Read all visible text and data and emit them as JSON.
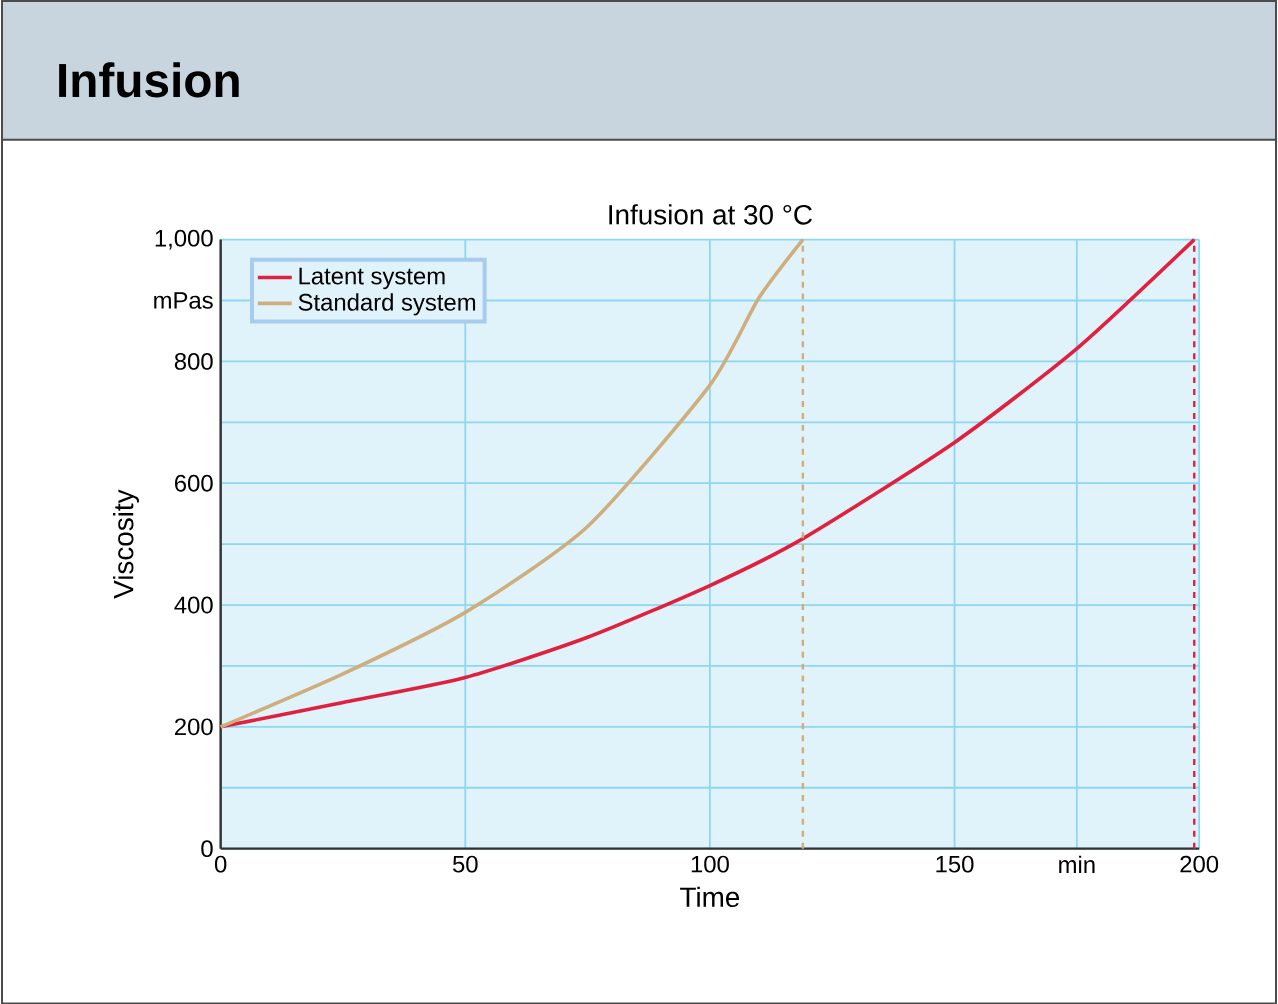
{
  "chart_data": {
    "type": "line",
    "title": "Infusion",
    "subtitle": "Infusion at 30 °C",
    "xlabel": "Time",
    "ylabel": "Viscosity",
    "xlim": [
      0,
      200
    ],
    "ylim": [
      0,
      1000
    ],
    "xticks": [
      0,
      50,
      100,
      150,
      {
        "value": 175,
        "label": "min"
      },
      200
    ],
    "yticks": [
      0,
      {
        "value": 100,
        "label": null
      },
      200,
      {
        "value": 300,
        "label": null
      },
      400,
      {
        "value": 500,
        "label": null
      },
      600,
      {
        "value": 700,
        "label": null
      },
      800,
      {
        "value": 900,
        "label": "mPas"
      },
      {
        "value": 1000,
        "label": "1,000"
      }
    ],
    "grid": true,
    "legend": "top left",
    "line_style": "solid",
    "marker": "none",
    "series": [
      {
        "name": "Latent system",
        "color": "#e0203f",
        "x": [
          0,
          25,
          50,
          75,
          100,
          119,
          150,
          175,
          199
        ],
        "values": [
          200,
          240,
          281,
          347,
          432,
          509,
          667,
          821,
          1000
        ]
      },
      {
        "name": "Standard system",
        "color": "#cfae7e",
        "x": [
          0,
          25,
          50,
          75,
          100,
          110,
          119
        ],
        "values": [
          200,
          287,
          388,
          529,
          761,
          904,
          1000
        ]
      }
    ],
    "ref_lines": [
      {
        "axis": "x",
        "value": 119,
        "color": "#cfae7e",
        "line_style": "dashed"
      },
      {
        "axis": "x",
        "value": 199,
        "color": "#e0203f",
        "line_style": "dashed"
      }
    ]
  }
}
